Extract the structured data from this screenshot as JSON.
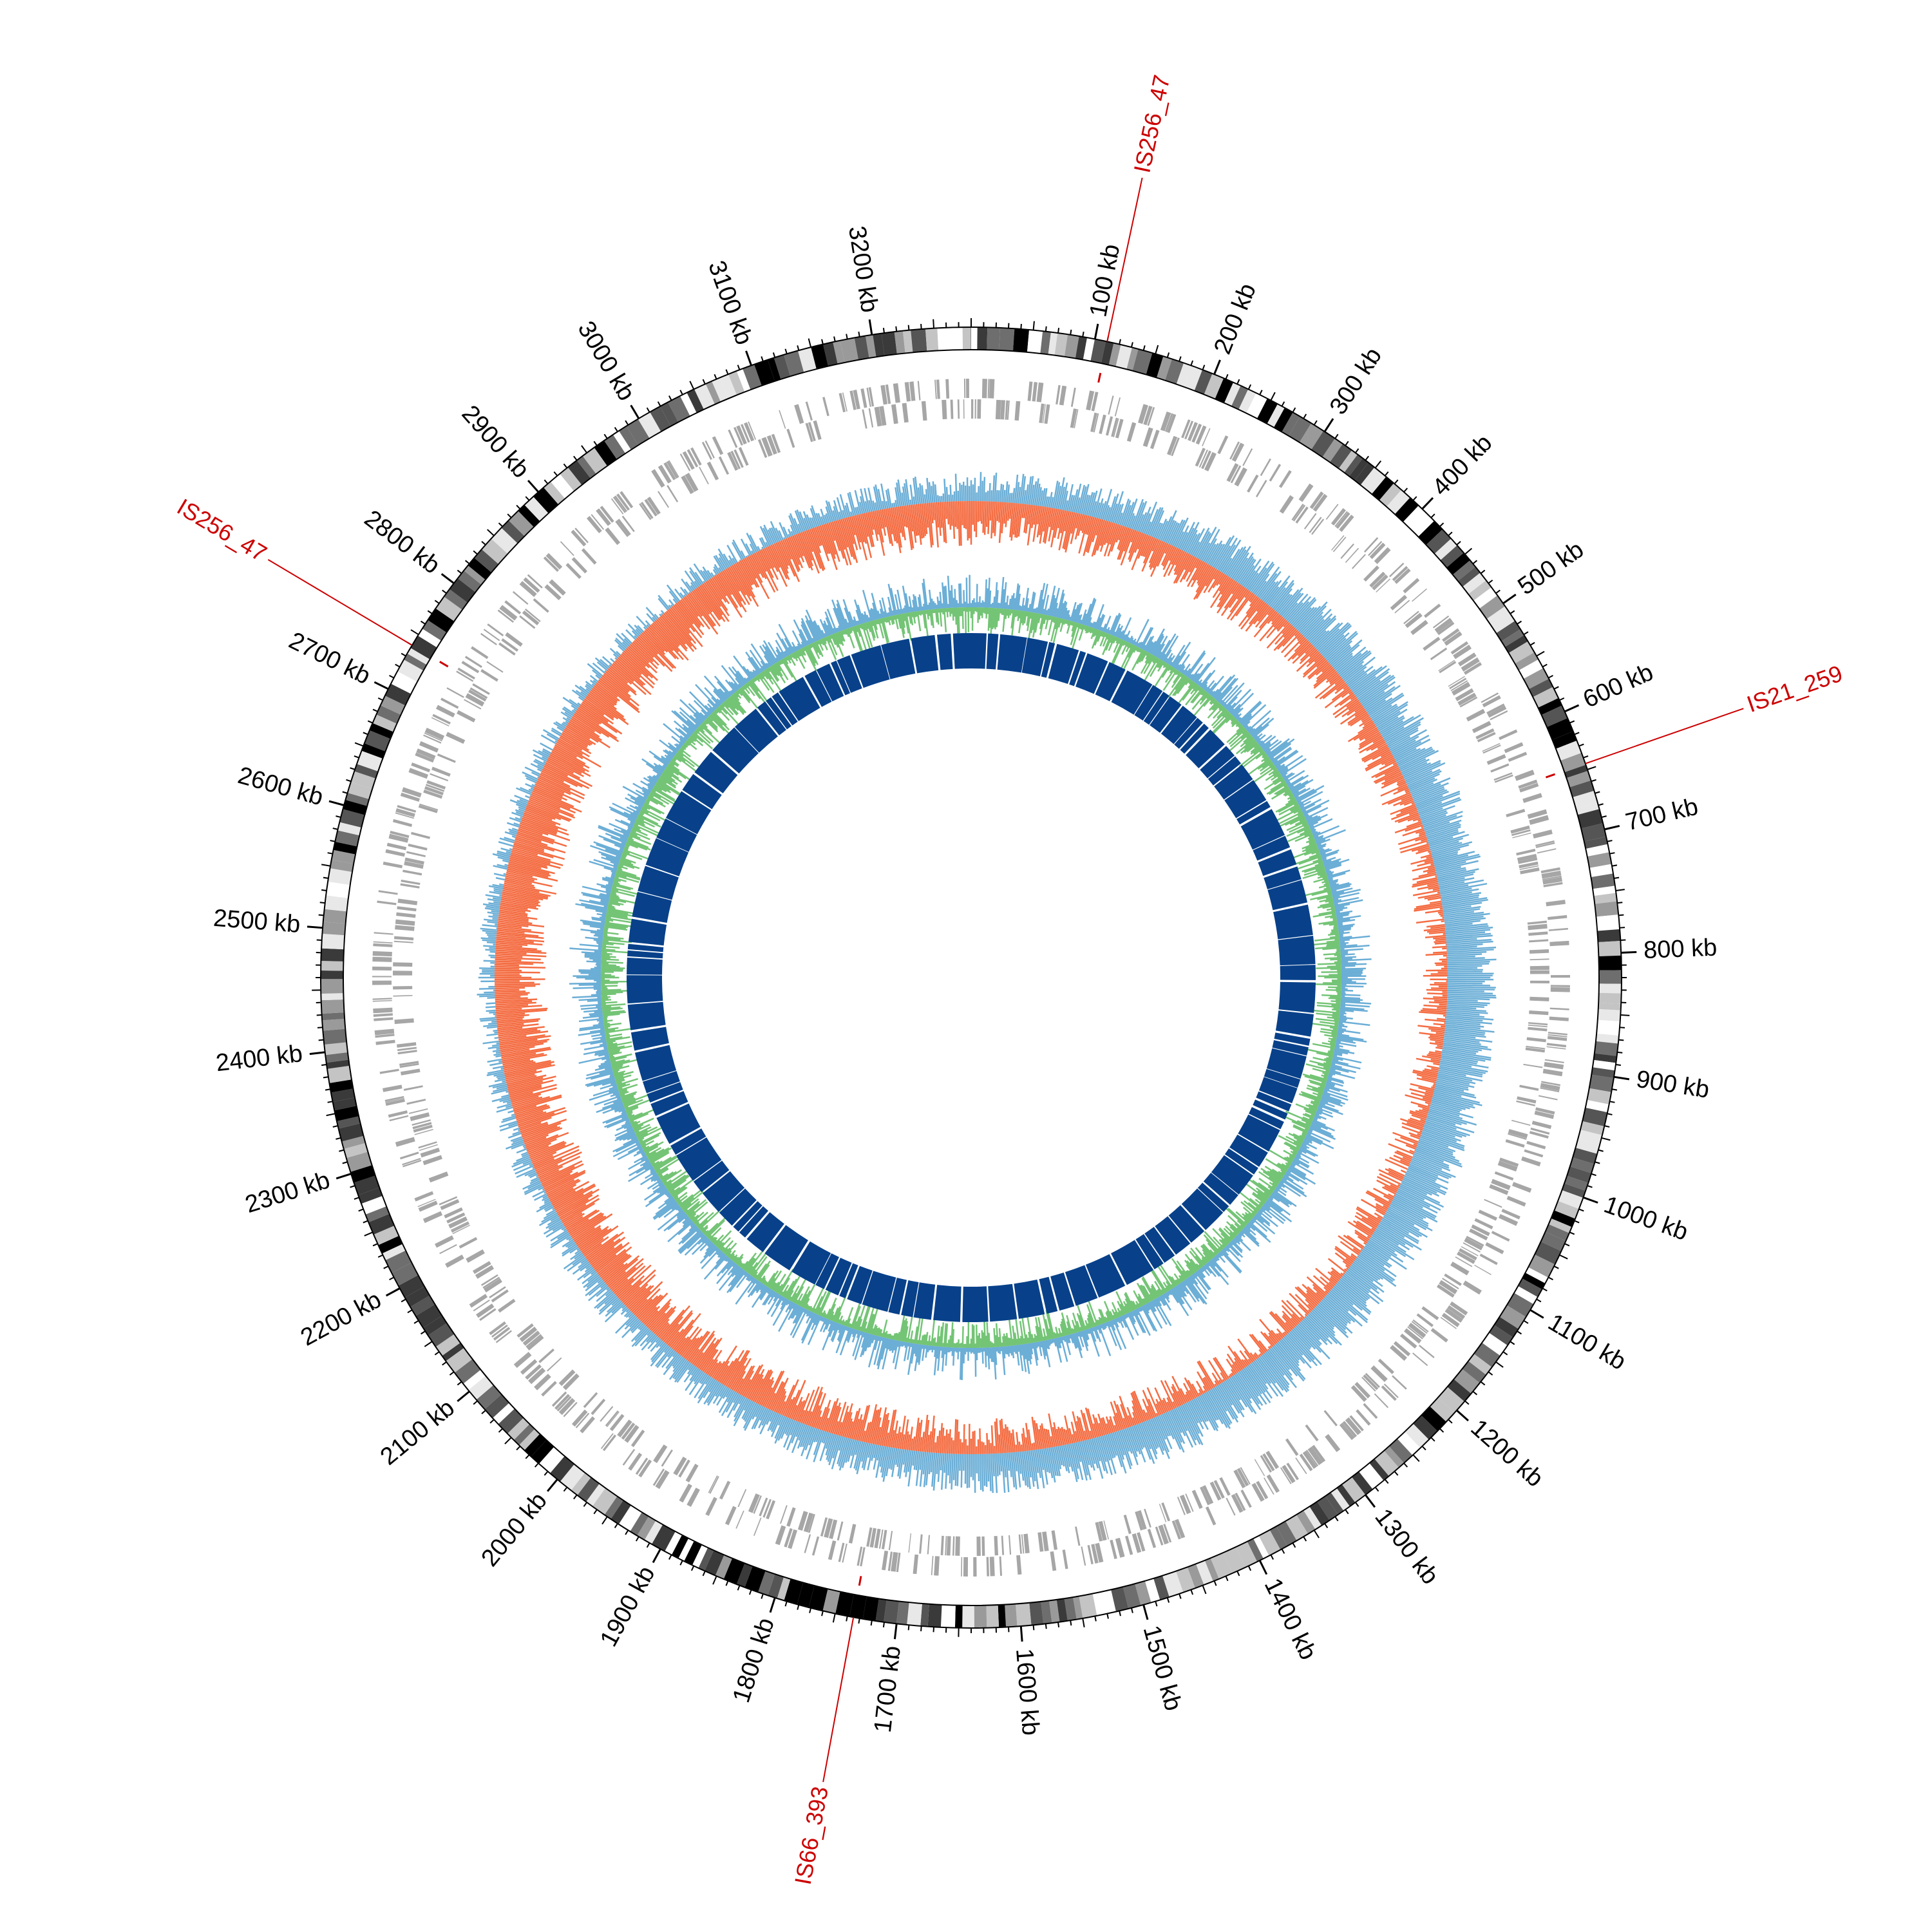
{
  "genome": {
    "length_kb": 3280,
    "tick_labels": [
      {
        "kb": 100,
        "label": "100 kb"
      },
      {
        "kb": 200,
        "label": "200 kb"
      },
      {
        "kb": 300,
        "label": "300 kb"
      },
      {
        "kb": 400,
        "label": "400 kb"
      },
      {
        "kb": 500,
        "label": "500 kb"
      },
      {
        "kb": 600,
        "label": "600 kb"
      },
      {
        "kb": 700,
        "label": "700 kb"
      },
      {
        "kb": 800,
        "label": "800 kb"
      },
      {
        "kb": 900,
        "label": "900 kb"
      },
      {
        "kb": 1000,
        "label": "1000 kb"
      },
      {
        "kb": 1100,
        "label": "1100 kb"
      },
      {
        "kb": 1200,
        "label": "1200 kb"
      },
      {
        "kb": 1300,
        "label": "1300 kb"
      },
      {
        "kb": 1400,
        "label": "1400 kb"
      },
      {
        "kb": 1500,
        "label": "1500 kb"
      },
      {
        "kb": 1600,
        "label": "1600 kb"
      },
      {
        "kb": 1700,
        "label": "1700 kb"
      },
      {
        "kb": 1800,
        "label": "1800 kb"
      },
      {
        "kb": 1900,
        "label": "1900 kb"
      },
      {
        "kb": 2000,
        "label": "2000 kb"
      },
      {
        "kb": 2100,
        "label": "2100 kb"
      },
      {
        "kb": 2200,
        "label": "2200 kb"
      },
      {
        "kb": 2300,
        "label": "2300 kb"
      },
      {
        "kb": 2400,
        "label": "2400 kb"
      },
      {
        "kb": 2500,
        "label": "2500 kb"
      },
      {
        "kb": 2600,
        "label": "2600 kb"
      },
      {
        "kb": 2700,
        "label": "2700 kb"
      },
      {
        "kb": 2800,
        "label": "2800 kb"
      },
      {
        "kb": 2900,
        "label": "2900 kb"
      },
      {
        "kb": 3000,
        "label": "3000 kb"
      },
      {
        "kb": 3100,
        "label": "3100 kb"
      },
      {
        "kb": 3200,
        "label": "3200 kb"
      }
    ]
  },
  "insertion_sequences": [
    {
      "kb": 110,
      "label": "IS256_47"
    },
    {
      "kb": 645,
      "label": "IS21_259"
    },
    {
      "kb": 1735,
      "label": "IS66_393"
    },
    {
      "kb": 2740,
      "label": "IS256_47"
    }
  ],
  "colors": {
    "ideogram_dark": "#000000",
    "ideogram_mid": "#7a7a7a",
    "ideogram_light": "#e6e6e6",
    "gene_track": "#a6a6a6",
    "gc_skew_positive": "#6baed6",
    "gc_skew_negative": "#f46d43",
    "gc_content_positive": "#6baed6",
    "gc_content_negative": "#74c476",
    "inner_features": "#08418a",
    "is_marker": "#cc0000"
  }
}
